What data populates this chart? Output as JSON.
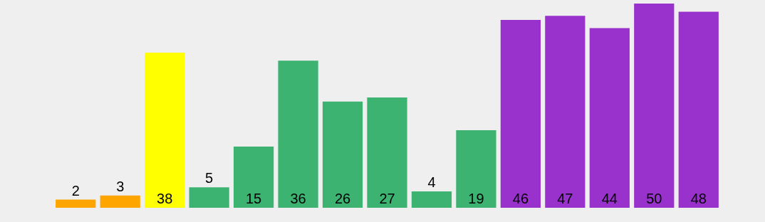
{
  "chart_data": {
    "type": "bar",
    "categories": [
      null,
      null,
      null,
      null,
      null,
      null,
      null,
      null,
      null,
      null,
      null,
      null,
      null,
      null,
      null
    ],
    "values": [
      2,
      3,
      38,
      5,
      15,
      36,
      26,
      27,
      4,
      19,
      46,
      47,
      44,
      50,
      48
    ],
    "colors": [
      "#ffa500",
      "#ffa500",
      "#ffff00",
      "#3cb371",
      "#3cb371",
      "#3cb371",
      "#3cb371",
      "#3cb371",
      "#3cb371",
      "#3cb371",
      "#9932cc",
      "#9932cc",
      "#9932cc",
      "#9932cc",
      "#9932cc"
    ],
    "ylim": [
      0,
      50
    ],
    "tick_labels": false,
    "data_labels": true,
    "legend": false
  }
}
